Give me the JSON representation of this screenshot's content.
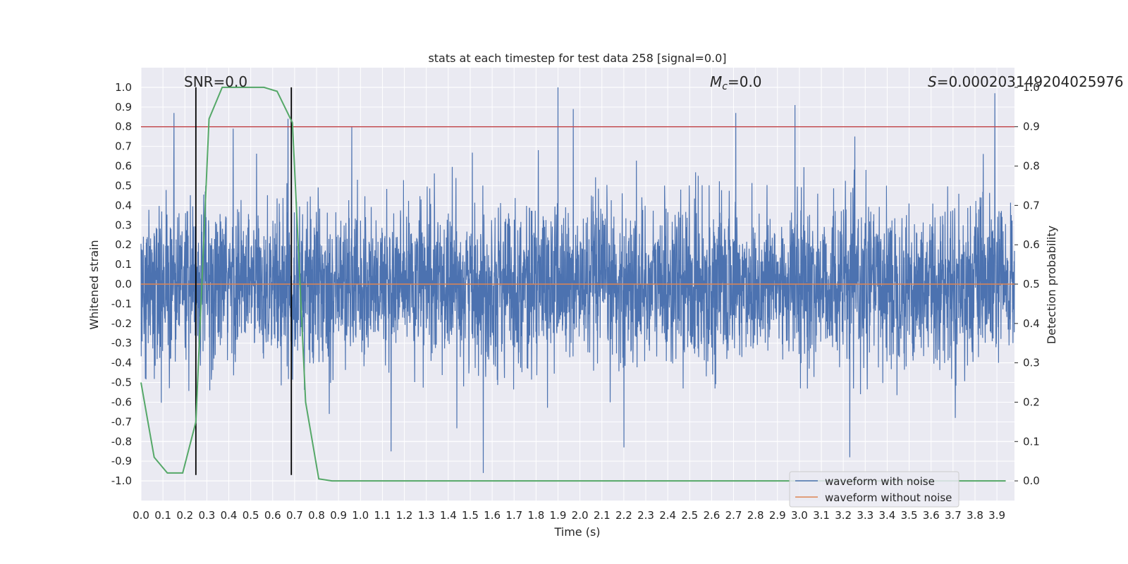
{
  "chart_data": {
    "type": "line",
    "title": "stats at each timestep for test data 258 [signal=0.0]",
    "xlabel": "Time (s)",
    "ylabel": "Whitened strain",
    "ylabel_right": "Detection probability",
    "xlim": [
      0.0,
      3.98
    ],
    "ylim": [
      -1.1,
      1.1
    ],
    "ylim_right": [
      -0.05,
      1.05
    ],
    "x_ticks": [
      "0.0",
      "0.1",
      "0.2",
      "0.3",
      "0.4",
      "0.5",
      "0.6",
      "0.7",
      "0.8",
      "0.9",
      "1.0",
      "1.1",
      "1.2",
      "1.3",
      "1.4",
      "1.5",
      "1.6",
      "1.7",
      "1.8",
      "1.9",
      "2.0",
      "2.1",
      "2.2",
      "2.3",
      "2.4",
      "2.5",
      "2.6",
      "2.7",
      "2.8",
      "2.9",
      "3.0",
      "3.1",
      "3.2",
      "3.3",
      "3.4",
      "3.5",
      "3.6",
      "3.7",
      "3.8",
      "3.9"
    ],
    "y_ticks": [
      "-1.0",
      "-0.9",
      "-0.8",
      "-0.7",
      "-0.6",
      "-0.5",
      "-0.4",
      "-0.3",
      "-0.2",
      "-0.1",
      "0.0",
      "0.1",
      "0.2",
      "0.3",
      "0.4",
      "0.5",
      "0.6",
      "0.7",
      "0.8",
      "0.9",
      "1.0"
    ],
    "y_ticks_right": [
      "0.0",
      "0.1",
      "0.2",
      "0.3",
      "0.4",
      "0.5",
      "0.6",
      "0.7",
      "0.8",
      "0.9",
      "1.0"
    ],
    "annotations": {
      "snr": "SNR=0.0",
      "mc_symbol": "M",
      "mc_sub": "c",
      "mc_value": "=0.0",
      "s_symbol": "S",
      "s_value": "=0.00020314920402597​6"
    },
    "series": [
      {
        "name": "waveform with noise",
        "color": "#4c72b0",
        "axis": "left",
        "noise_sd": 0.2,
        "spikes": [
          {
            "x": 0.15,
            "y": 0.87
          },
          {
            "x": 0.42,
            "y": 0.79
          },
          {
            "x": 0.96,
            "y": 0.8
          },
          {
            "x": 1.9,
            "y": 1.0
          },
          {
            "x": 1.97,
            "y": 0.89
          },
          {
            "x": 2.71,
            "y": 0.87
          },
          {
            "x": 2.98,
            "y": 0.91
          },
          {
            "x": 3.89,
            "y": 0.97
          },
          {
            "x": 1.56,
            "y": -0.96
          },
          {
            "x": 3.23,
            "y": -0.88
          },
          {
            "x": 2.2,
            "y": -0.83
          },
          {
            "x": 1.14,
            "y": -0.85
          },
          {
            "x": 0.67,
            "y": 0.84
          }
        ]
      },
      {
        "name": "waveform without noise",
        "color": "#dd8452",
        "axis": "left",
        "constant": 0.0
      },
      {
        "name": "Detection probability",
        "color": "#55a868",
        "axis": "right",
        "x": [
          0.0,
          0.06,
          0.12,
          0.19,
          0.25,
          0.31,
          0.37,
          0.44,
          0.5,
          0.56,
          0.62,
          0.69,
          0.75,
          0.81,
          0.87,
          0.94,
          3.94
        ],
        "y": [
          0.25,
          0.06,
          0.02,
          0.02,
          0.15,
          0.92,
          1.0,
          1.0,
          1.0,
          1.0,
          0.99,
          0.91,
          0.2,
          0.005,
          0.0,
          0.0,
          0.0
        ]
      }
    ],
    "reference_lines": {
      "red_threshold": {
        "value": 0.9,
        "axis": "right",
        "color": "#c44e52"
      },
      "vlines": [
        0.25,
        0.685
      ]
    },
    "legend": {
      "placement": "lower-right",
      "entries": [
        {
          "label": "waveform with noise",
          "color": "#4c72b0"
        },
        {
          "label": "waveform without noise",
          "color": "#dd8452"
        }
      ]
    },
    "grid": true,
    "background": "#eaeaf2"
  }
}
